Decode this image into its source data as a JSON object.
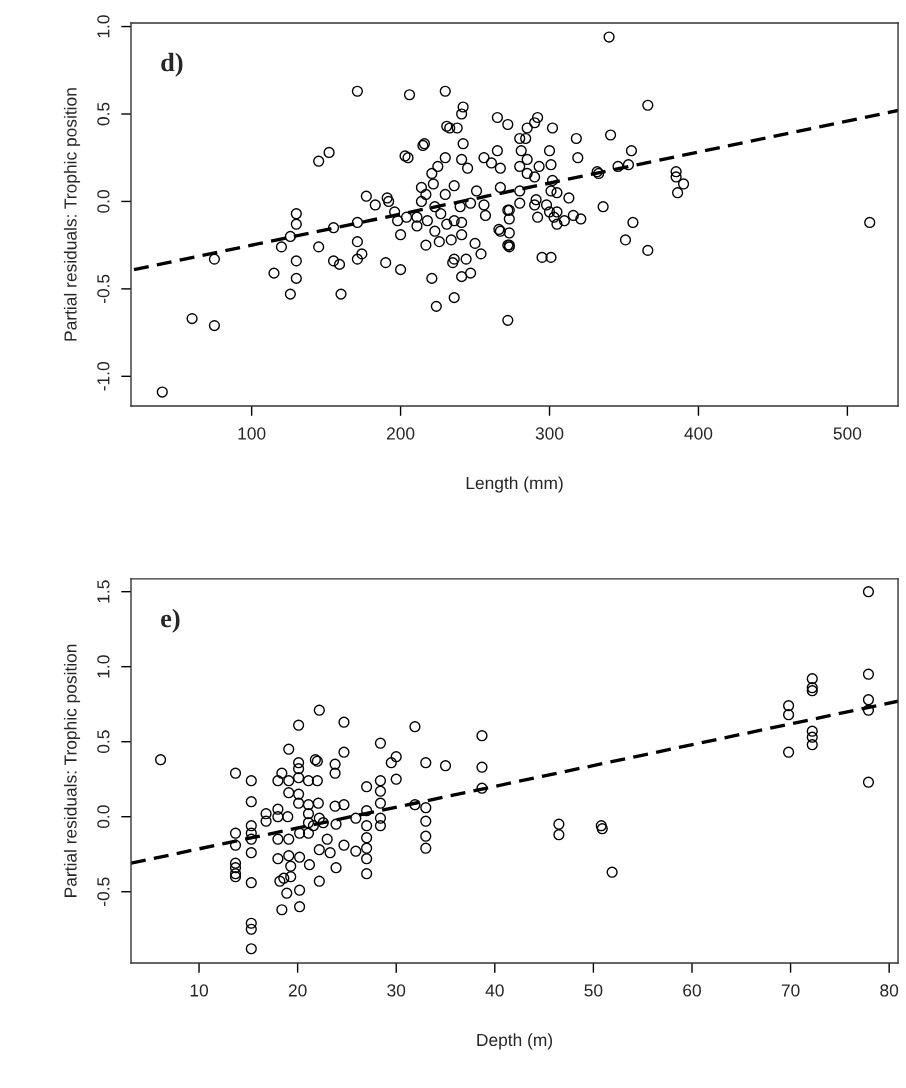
{
  "chart_data": [
    {
      "type": "scatter",
      "xlabel": "Length (mm)",
      "ylabel": "Partial residuals: Trophic position",
      "annotations": [
        "d)"
      ],
      "grid": false,
      "xlim": [
        19,
        534
      ],
      "xticks": [
        100,
        200,
        300,
        400,
        500
      ],
      "ylim": [
        -1.17,
        1.02
      ],
      "yticks": [
        {
          "value": -1.0,
          "label": "-1.0"
        },
        {
          "value": -0.5,
          "label": "-0.5"
        },
        {
          "value": 0.0,
          "label": "0.0"
        },
        {
          "value": 0.5,
          "label": "0.5"
        },
        {
          "value": 1.0,
          "label": "1.0"
        }
      ],
      "series": [
        {
          "marker": "circle",
          "color": "#000000",
          "x": [
            40,
            60,
            75,
            75,
            115,
            120,
            126,
            126,
            130,
            130,
            130,
            130,
            145,
            152,
            145,
            155,
            155,
            159,
            160,
            171,
            171,
            171,
            171,
            174,
            177,
            183,
            190,
            191,
            192,
            196,
            200,
            200,
            198,
            204,
            203,
            205,
            206,
            211,
            211,
            214,
            214,
            215,
            216,
            217,
            217,
            218,
            221,
            221,
            222,
            223,
            223,
            224,
            225,
            226,
            227,
            230,
            230,
            230,
            231,
            233,
            231,
            234,
            235,
            236,
            236,
            236,
            236,
            238,
            240,
            241,
            242,
            241,
            241,
            241,
            242,
            241,
            244,
            245,
            247,
            247,
            250,
            251,
            254,
            256,
            256,
            257,
            261,
            265,
            265,
            267,
            266,
            267,
            272,
            272,
            272,
            272,
            267,
            273,
            273,
            273,
            273,
            273,
            280,
            281,
            280,
            280,
            280,
            284,
            285,
            285,
            285,
            290,
            292,
            290,
            291,
            290,
            292,
            293,
            295,
            301,
            300,
            301,
            302,
            298,
            300,
            301,
            302,
            305,
            305,
            303,
            305,
            310,
            313,
            316,
            318,
            319,
            321,
            332,
            333,
            336,
            340,
            341,
            346,
            351,
            353,
            355,
            356,
            366,
            366,
            385,
            385,
            386,
            390,
            515
          ],
          "values": [
            -1.09,
            -0.67,
            -0.71,
            -0.33,
            -0.41,
            -0.26,
            -0.53,
            -0.2,
            -0.07,
            -0.13,
            -0.34,
            -0.44,
            0.23,
            0.28,
            -0.26,
            -0.15,
            -0.34,
            -0.36,
            -0.53,
            0.63,
            -0.12,
            -0.23,
            -0.33,
            -0.3,
            0.03,
            -0.02,
            -0.35,
            0.02,
            0.0,
            -0.06,
            -0.19,
            -0.39,
            -0.11,
            -0.09,
            0.26,
            0.25,
            0.61,
            -0.09,
            -0.14,
            0.08,
            0.0,
            0.32,
            0.33,
            -0.25,
            0.04,
            -0.11,
            0.16,
            -0.44,
            0.1,
            -0.03,
            -0.17,
            -0.6,
            0.2,
            -0.23,
            -0.07,
            0.25,
            0.04,
            0.63,
            0.43,
            0.42,
            -0.13,
            -0.22,
            -0.35,
            -0.33,
            -0.55,
            -0.11,
            0.09,
            0.42,
            -0.03,
            0.5,
            0.54,
            -0.12,
            -0.19,
            0.24,
            0.33,
            -0.43,
            -0.33,
            0.19,
            -0.41,
            -0.01,
            -0.24,
            0.06,
            -0.3,
            0.25,
            -0.02,
            -0.08,
            0.22,
            0.48,
            0.29,
            0.19,
            -0.16,
            0.08,
            0.44,
            -0.25,
            -0.68,
            -0.05,
            -0.17,
            -0.1,
            -0.18,
            -0.26,
            -0.05,
            -0.25,
            0.36,
            0.29,
            0.2,
            0.06,
            -0.01,
            0.36,
            0.42,
            0.24,
            0.16,
            0.45,
            0.48,
            0.14,
            0.01,
            -0.02,
            -0.09,
            0.2,
            -0.32,
            -0.32,
            0.29,
            0.21,
            0.12,
            -0.02,
            -0.06,
            0.06,
            0.42,
            0.05,
            -0.06,
            -0.09,
            -0.13,
            -0.11,
            0.02,
            -0.08,
            0.36,
            0.25,
            -0.1,
            0.17,
            0.16,
            -0.03,
            0.94,
            0.38,
            0.2,
            -0.22,
            0.21,
            0.29,
            -0.12,
            0.55,
            -0.28,
            0.17,
            0.14,
            0.05,
            0.1,
            -0.12
          ]
        },
        {
          "type": "line",
          "color": "#000000",
          "line_style": "dashed",
          "x": [
            21,
            534
          ],
          "values": [
            -0.39,
            0.52
          ]
        }
      ]
    },
    {
      "type": "scatter",
      "xlabel": "Depth (m)",
      "ylabel": "Partial residuals: Trophic position",
      "annotations": [
        "e)"
      ],
      "grid": false,
      "xlim": [
        3.1,
        80.9
      ],
      "xticks": [
        10,
        20,
        30,
        40,
        50,
        60,
        70,
        80
      ],
      "ylim": [
        -0.975,
        1.585
      ],
      "yticks": [
        {
          "value": -0.5,
          "label": "-0.5"
        },
        {
          "value": 0.0,
          "label": "0.0"
        },
        {
          "value": 0.5,
          "label": "0.5"
        },
        {
          "value": 1.0,
          "label": "1.0"
        },
        {
          "value": 1.5,
          "label": "1.5"
        }
      ],
      "series": [
        {
          "marker": "circle",
          "color": "#000000",
          "x": [
            6.1,
            13.7,
            13.7,
            13.7,
            13.7,
            13.7,
            13.7,
            13.7,
            15.3,
            15.3,
            15.3,
            15.3,
            15.3,
            15.3,
            15.3,
            15.3,
            15.3,
            15.3,
            16.8,
            16.8,
            18.0,
            18.0,
            18.0,
            18.4,
            18.0,
            18.0,
            18.2,
            18.4,
            18.6,
            18.9,
            19.0,
            19.1,
            19.1,
            19.1,
            19.1,
            19.1,
            19.3,
            19.3,
            20.1,
            20.1,
            20.1,
            20.1,
            20.1,
            20.1,
            20.2,
            20.2,
            20.2,
            20.2,
            21.1,
            21.1,
            21.1,
            21.1,
            21.1,
            21.2,
            21.6,
            21.8,
            22.0,
            22.0,
            22.1,
            22.2,
            22.2,
            22.2,
            22.2,
            22.6,
            23.0,
            23.3,
            23.8,
            23.8,
            23.8,
            23.9,
            23.9,
            24.7,
            24.7,
            24.7,
            24.7,
            25.9,
            25.9,
            27.0,
            27.0,
            27.0,
            27.0,
            27.0,
            27.0,
            27.0,
            28.4,
            28.4,
            28.4,
            28.4,
            28.4,
            28.4,
            29.5,
            30.0,
            30.0,
            31.9,
            31.9,
            33.0,
            33.0,
            33.0,
            33.0,
            33.0,
            35.0,
            38.7,
            38.7,
            38.7,
            46.5,
            46.5,
            50.8,
            50.9,
            51.9,
            69.8,
            69.8,
            69.8,
            72.2,
            72.2,
            72.2,
            72.2,
            72.2,
            72.2,
            77.9,
            77.9,
            77.9,
            77.9,
            77.9
          ],
          "values": [
            0.38,
            0.29,
            -0.11,
            -0.19,
            -0.31,
            -0.34,
            -0.38,
            -0.4,
            0.24,
            0.1,
            -0.06,
            -0.11,
            -0.15,
            -0.24,
            -0.44,
            -0.71,
            -0.75,
            -0.88,
            0.02,
            -0.03,
            0.05,
            0.0,
            0.24,
            0.29,
            -0.15,
            -0.28,
            -0.43,
            -0.62,
            -0.41,
            -0.51,
            0.0,
            0.45,
            0.24,
            0.16,
            -0.15,
            -0.26,
            -0.33,
            -0.4,
            0.61,
            0.36,
            0.32,
            0.26,
            0.15,
            0.09,
            -0.11,
            -0.27,
            -0.49,
            -0.6,
            0.24,
            0.08,
            0.02,
            -0.04,
            -0.11,
            -0.32,
            -0.06,
            0.38,
            0.37,
            0.24,
            0.09,
            0.71,
            -0.01,
            -0.22,
            -0.43,
            -0.04,
            -0.15,
            -0.24,
            0.35,
            0.29,
            0.07,
            -0.05,
            -0.34,
            0.63,
            0.43,
            0.08,
            -0.19,
            -0.01,
            -0.23,
            0.2,
            0.04,
            -0.06,
            -0.14,
            -0.21,
            -0.28,
            -0.38,
            0.49,
            0.24,
            0.17,
            0.09,
            -0.01,
            -0.06,
            0.36,
            0.4,
            0.25,
            0.6,
            0.08,
            0.36,
            0.06,
            -0.03,
            -0.13,
            -0.21,
            0.34,
            0.54,
            0.33,
            0.19,
            -0.05,
            -0.12,
            -0.06,
            -0.08,
            -0.37,
            0.74,
            0.68,
            0.43,
            0.92,
            0.86,
            0.84,
            0.57,
            0.53,
            0.48,
            1.5,
            0.95,
            0.78,
            0.71,
            0.23
          ]
        },
        {
          "type": "line",
          "color": "#000000",
          "line_style": "dashed",
          "x": [
            3.1,
            80.9
          ],
          "values": [
            -0.31,
            0.77
          ]
        }
      ]
    }
  ]
}
